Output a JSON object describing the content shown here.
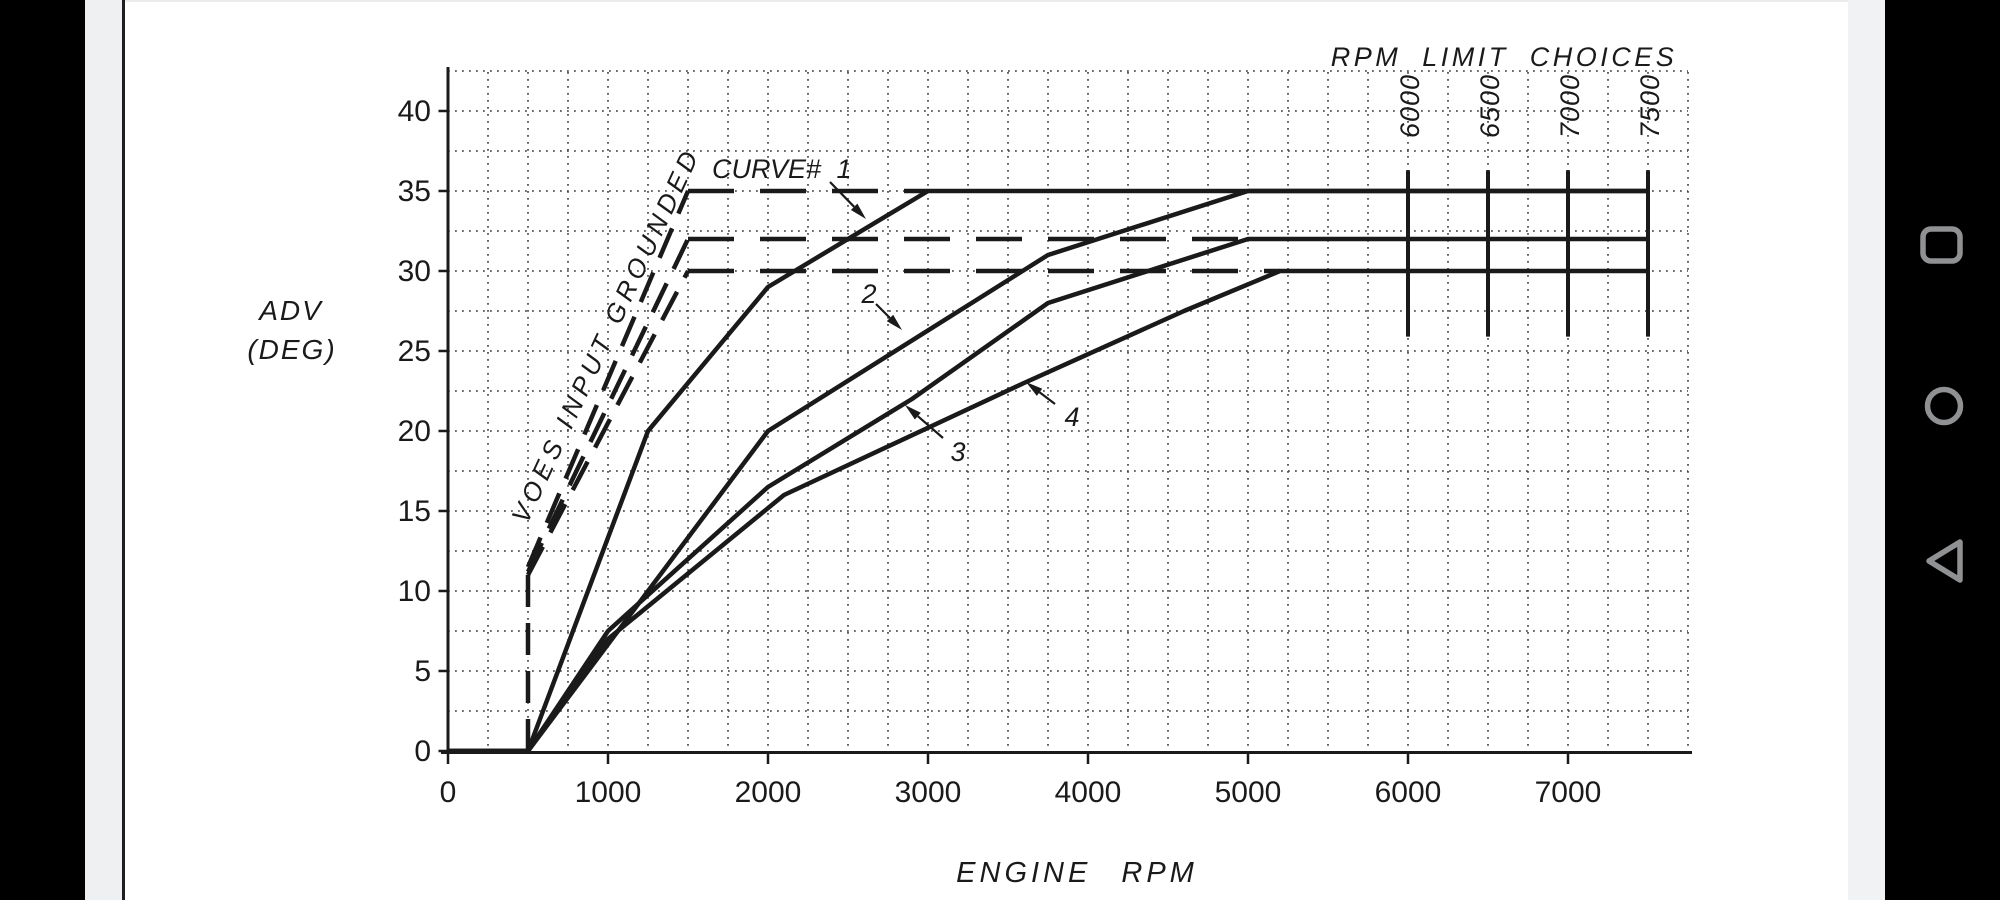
{
  "colors": {
    "ink": "#1a1a1a",
    "grid": "#3c3c3c",
    "page": "#ffffff",
    "side_bars": "#000000",
    "gutter": "#eef0f2",
    "nav_icon_gray": "#8f9193"
  },
  "android_nav": {
    "icons": [
      "recents-square",
      "home-circle",
      "back-triangle"
    ]
  },
  "chart_data": {
    "type": "line",
    "xlabel": "ENGINE RPM",
    "ylabel_line1": "ADV",
    "ylabel_line2": "(DEG)",
    "x_ticks": [
      0,
      1000,
      2000,
      3000,
      4000,
      5000,
      6000,
      7000
    ],
    "y_ticks": [
      0,
      5,
      10,
      15,
      20,
      25,
      30,
      35,
      40
    ],
    "x_range_rpm": [
      0,
      7750
    ],
    "y_range_deg": [
      0,
      42.5
    ],
    "grid": "dotted, every 250 RPM horizontally and 2.5 deg vertically",
    "annotations": {
      "rpm_limit_title": "RPM LIMIT CHOICES",
      "voes": "VOES INPUT GROUNDED",
      "curve_callouts": [
        "CURVE# 1",
        "2",
        "3",
        "4"
      ]
    },
    "rpm_limits": [
      6000,
      6500,
      7000,
      7500
    ],
    "rpm_limit_line_adv_span": [
      25.9,
      36.3
    ],
    "series": [
      {
        "name": "curve-1",
        "style": "solid",
        "points": [
          [
            0,
            0
          ],
          [
            500,
            0
          ],
          [
            1250,
            20
          ],
          [
            2000,
            29
          ],
          [
            3000,
            35
          ],
          [
            7500,
            35
          ]
        ]
      },
      {
        "name": "curve-2",
        "style": "solid",
        "points": [
          [
            0,
            0
          ],
          [
            500,
            0
          ],
          [
            2000,
            20
          ],
          [
            3750,
            31
          ],
          [
            5000,
            35
          ],
          [
            7500,
            35
          ]
        ]
      },
      {
        "name": "curve-3",
        "style": "solid",
        "points": [
          [
            0,
            0
          ],
          [
            500,
            0
          ],
          [
            1000,
            7.5
          ],
          [
            2000,
            16.5
          ],
          [
            2900,
            22
          ],
          [
            3750,
            28
          ],
          [
            5000,
            32
          ],
          [
            7500,
            32
          ]
        ]
      },
      {
        "name": "curve-4",
        "style": "solid",
        "points": [
          [
            0,
            0
          ],
          [
            500,
            0
          ],
          [
            1000,
            7
          ],
          [
            2100,
            16
          ],
          [
            3600,
            23
          ],
          [
            4600,
            27.5
          ],
          [
            5200,
            30
          ],
          [
            7500,
            30
          ]
        ]
      },
      {
        "name": "voes-jump-500rpm",
        "style": "dashed",
        "points": [
          [
            500,
            0
          ],
          [
            500,
            11.5
          ]
        ]
      },
      {
        "name": "voes-rise-to-35",
        "style": "dashed",
        "points": [
          [
            500,
            11.5
          ],
          [
            1500,
            35
          ]
        ]
      },
      {
        "name": "voes-rise-to-32",
        "style": "dashed",
        "points": [
          [
            500,
            11.2
          ],
          [
            1500,
            32
          ]
        ]
      },
      {
        "name": "voes-rise-to-30",
        "style": "dashed",
        "points": [
          [
            500,
            11
          ],
          [
            1500,
            30
          ]
        ]
      },
      {
        "name": "voes-plateau-35",
        "style": "dashed-long",
        "points": [
          [
            1500,
            35
          ],
          [
            3000,
            35
          ]
        ]
      },
      {
        "name": "voes-plateau-32",
        "style": "dashed-long",
        "points": [
          [
            1500,
            32
          ],
          [
            5000,
            32
          ]
        ]
      },
      {
        "name": "voes-plateau-30",
        "style": "dashed-long",
        "points": [
          [
            1500,
            30
          ],
          [
            5200,
            30
          ]
        ]
      }
    ]
  }
}
